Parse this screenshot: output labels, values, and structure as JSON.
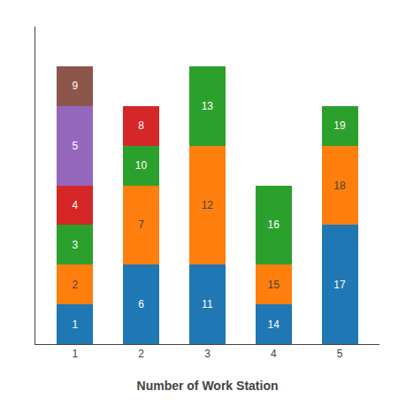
{
  "chart_data": {
    "type": "bar",
    "stacked": true,
    "xlabel": "Number of Work Station",
    "x": [
      1,
      2,
      3,
      4,
      5
    ],
    "xlim": [
      0.4,
      5.6
    ],
    "xticks": [
      1,
      2,
      3,
      4,
      5
    ],
    "ylim": [
      0,
      8
    ],
    "tick_labels": "x",
    "grid": false,
    "series": [
      {
        "values": [
          1,
          2,
          2,
          1,
          3
        ],
        "labels": [
          "1",
          "6",
          "11",
          "14",
          "17"
        ]
      },
      {
        "values": [
          1,
          2,
          3,
          1,
          2
        ],
        "labels": [
          "2",
          "7",
          "12",
          "15",
          "18"
        ]
      },
      {
        "values": [
          1,
          1,
          2,
          2,
          1
        ],
        "labels": [
          "3",
          "10",
          "13",
          "16",
          "19"
        ]
      },
      {
        "values": [
          1,
          1,
          null,
          null,
          null
        ],
        "labels": [
          "4",
          "8",
          null,
          null,
          null
        ]
      },
      {
        "values": [
          2,
          null,
          null,
          null,
          null
        ],
        "labels": [
          "5",
          null,
          null,
          null,
          null
        ]
      },
      {
        "values": [
          1,
          null,
          null,
          null,
          null
        ],
        "labels": [
          "9",
          null,
          null,
          null,
          null
        ]
      }
    ]
  }
}
